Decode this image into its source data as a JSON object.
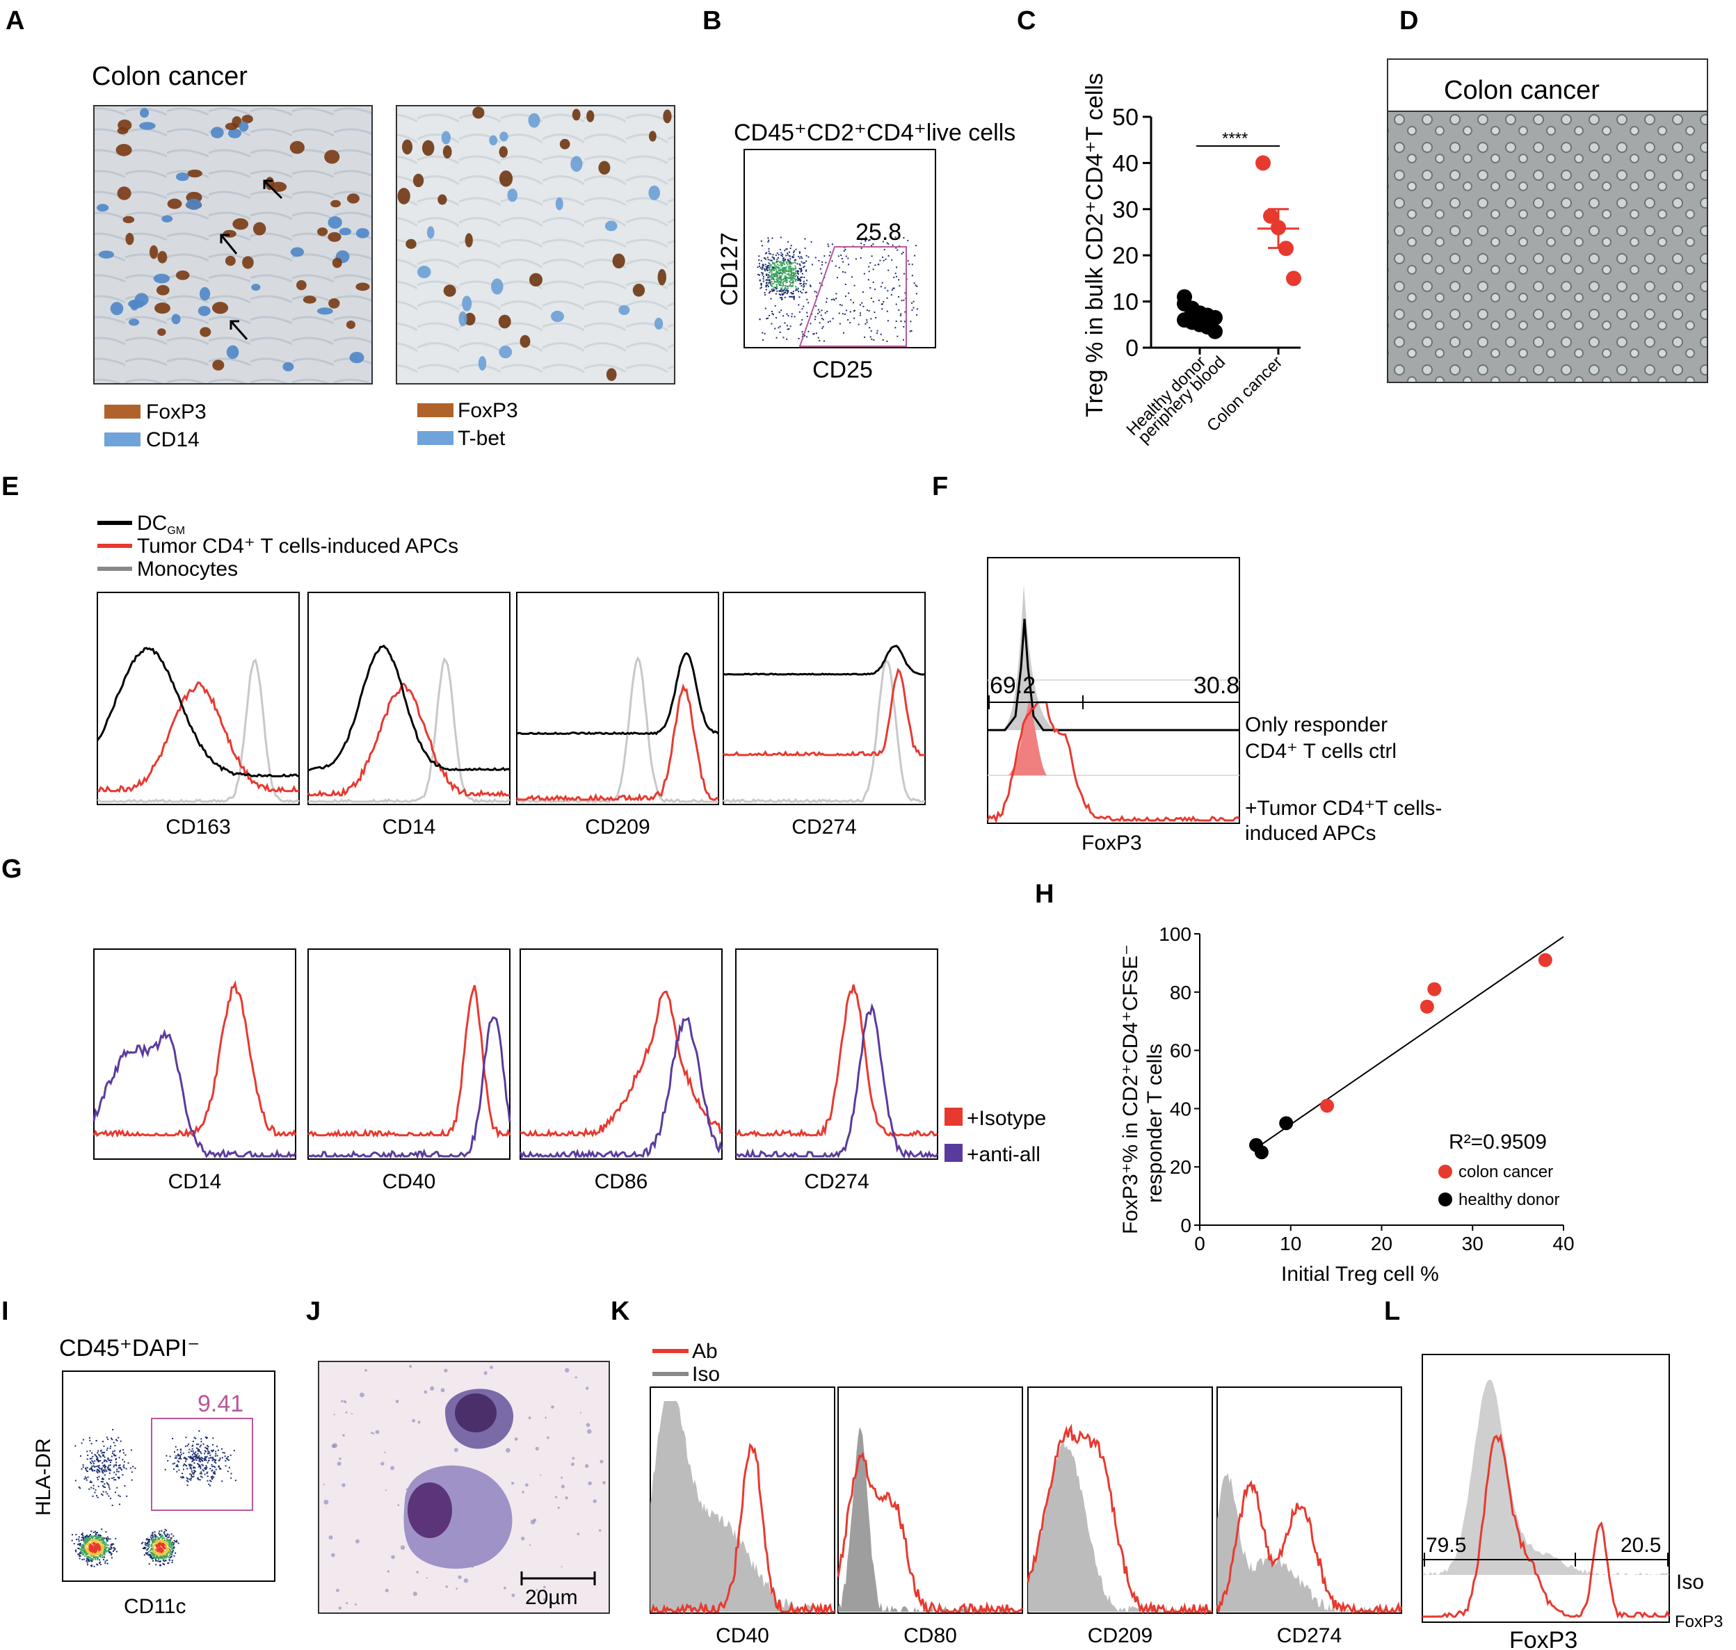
{
  "panel_letters": [
    "A",
    "B",
    "C",
    "D",
    "E",
    "F",
    "G",
    "H",
    "I",
    "J",
    "K",
    "L"
  ],
  "panelA": {
    "title": "Colon cancer",
    "legend_left": [
      {
        "label": "FoxP3",
        "color": "#b0622a"
      },
      {
        "label": "CD14",
        "color": "#6fa3d9"
      }
    ],
    "legend_right": [
      {
        "label": "FoxP3",
        "color": "#b0622a"
      },
      {
        "label": "T-bet",
        "color": "#6fa3d9"
      }
    ]
  },
  "panelB": {
    "title_html": "CD45⁺CD2⁺CD4⁺live cells",
    "gate_value": "25.8",
    "x_label": "CD25",
    "y_label": "CD127"
  },
  "panelC": {
    "y_label": "Treg % in bulk CD2⁺CD4⁺T cells",
    "significance": "****",
    "categories": [
      "Healthy donor periphery blood",
      "Colon cancer"
    ],
    "cat_lines": [
      [
        "Healthy donor",
        "periphery blood"
      ],
      [
        "Colon cancer"
      ]
    ],
    "ticks": [
      "0",
      "10",
      "20",
      "30",
      "40",
      "50"
    ],
    "chart_data": {
      "type": "scatter",
      "ylim": [
        0,
        50
      ],
      "series": [
        {
          "name": "Healthy donor periphery blood",
          "color": "#000000",
          "values": [
            9.5,
            8.5,
            7.5,
            7.0,
            6.5,
            6.0,
            5.5,
            5.0,
            4.5,
            3.5,
            11.0,
            8.0
          ],
          "mean": 6.8,
          "sem": 0.7
        },
        {
          "name": "Colon cancer",
          "color": "#e8392f",
          "values": [
            40,
            28.5,
            26,
            21.5,
            15
          ],
          "mean": 25.8,
          "sem": 4.2
        }
      ]
    }
  },
  "panelD": {
    "title": "Colon cancer"
  },
  "panelE": {
    "legend": [
      {
        "label": "DC",
        "sub": "GM",
        "color": "#000000"
      },
      {
        "label": "Tumor CD4⁺ T cells-induced APCs",
        "sub": "",
        "color": "#e8392f"
      },
      {
        "label": "Monocytes",
        "sub": "",
        "color": "#888888"
      }
    ],
    "markers": [
      "CD163",
      "CD14",
      "CD209",
      "CD274"
    ]
  },
  "panelF": {
    "left_value": "69.2",
    "right_value": "30.8",
    "label1_lines": [
      "Only responder",
      "CD4⁺ T cells ctrl"
    ],
    "label2_lines": [
      "+Tumor CD4⁺T cells-",
      "induced APCs"
    ],
    "x_label": "FoxP3"
  },
  "panelG": {
    "markers": [
      "CD14",
      "CD40",
      "CD86",
      "CD274"
    ],
    "legend": [
      {
        "label": "+Isotype",
        "color": "#e8392f"
      },
      {
        "label": "+anti-all",
        "color": "#5b3a9e"
      }
    ]
  },
  "panelH": {
    "x_label": "Initial Treg cell %",
    "y_label_lines": [
      "FoxP3⁺% in CD2⁺CD4⁺CFSE⁻",
      "responder T cells"
    ],
    "r2": "R²=0.9509",
    "legend": [
      {
        "label": "colon cancer",
        "color": "#e8392f"
      },
      {
        "label": "healthy donor",
        "color": "#000000"
      }
    ],
    "x_ticks": [
      "0",
      "10",
      "20",
      "30",
      "40"
    ],
    "y_ticks": [
      "0",
      "20",
      "40",
      "60",
      "80",
      "100"
    ],
    "chart_data": {
      "type": "scatter",
      "xlim": [
        0,
        40
      ],
      "ylim": [
        0,
        100
      ],
      "series": [
        {
          "name": "colon cancer",
          "color": "#e8392f",
          "points": [
            [
              14,
              41
            ],
            [
              25,
              75
            ],
            [
              25.8,
              81
            ],
            [
              38,
              91
            ]
          ]
        },
        {
          "name": "healthy donor",
          "color": "#000000",
          "points": [
            [
              6.2,
              27.5
            ],
            [
              6.8,
              25
            ],
            [
              9.5,
              35
            ]
          ]
        }
      ],
      "fit_line": [
        [
          6.0,
          26.0
        ],
        [
          40,
          99
        ]
      ]
    }
  },
  "panelI": {
    "title_html": "CD45⁺DAPI⁻",
    "gate_value": "9.41",
    "x_label": "CD11c",
    "y_label": "HLA-DR"
  },
  "panelJ": {
    "scale_label": "20µm"
  },
  "panelK": {
    "legend": [
      {
        "label": "Ab",
        "color": "#e8392f"
      },
      {
        "label": "Iso",
        "color": "#888888"
      }
    ],
    "markers": [
      "CD40",
      "CD80",
      "CD209",
      "CD274"
    ]
  },
  "panelL": {
    "left_value": "79.5",
    "right_value": "20.5",
    "iso_label": "Iso",
    "foxp3_label": "FoxP3",
    "x_label": "FoxP3"
  }
}
